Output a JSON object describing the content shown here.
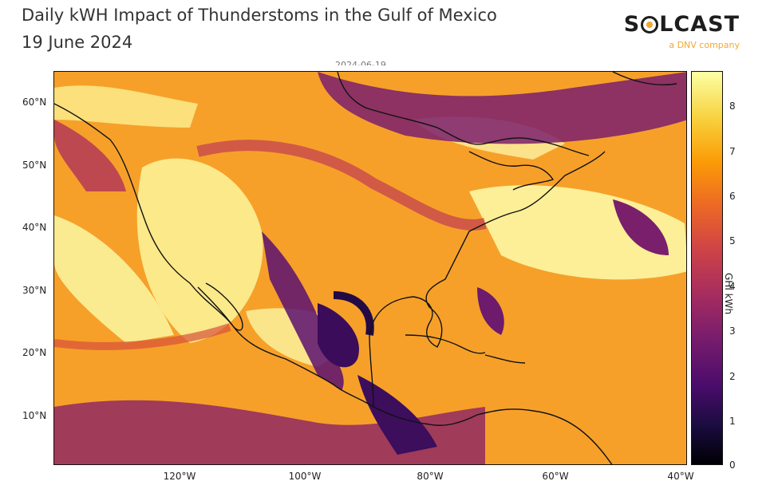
{
  "header": {
    "title": "Daily kWH Impact of Thunderstoms in the Gulf of Mexico",
    "subtitle": "19 June 2024",
    "date_strip": "2024-06-19"
  },
  "brand": {
    "name_before": "S",
    "name_after": "LCAST",
    "tagline": "a DNV company",
    "accent_color": "#f0a830"
  },
  "map": {
    "lat_labels": [
      "60°N",
      "50°N",
      "40°N",
      "30°N",
      "20°N",
      "10°N"
    ],
    "lon_labels": [
      "120°W",
      "100°W",
      "80°W",
      "60°W",
      "40°W"
    ]
  },
  "colorbar": {
    "label": "GHI kWh",
    "ticks": [
      "8",
      "7",
      "6",
      "5",
      "4",
      "3",
      "2",
      "1",
      "0"
    ],
    "colormap": "inferno",
    "range": [
      0,
      8.8
    ]
  }
}
